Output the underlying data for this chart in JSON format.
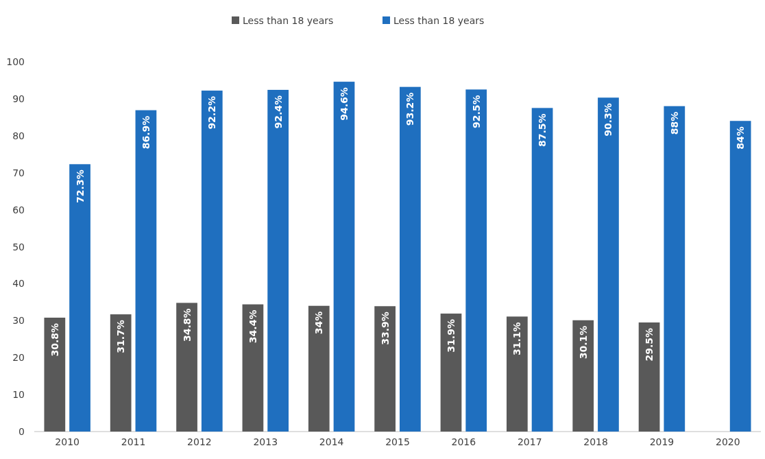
{
  "chart_data": {
    "type": "bar",
    "categories": [
      "2010",
      "2011",
      "2012",
      "2013",
      "2014",
      "2015",
      "2016",
      "2017",
      "2018",
      "2019",
      "2020"
    ],
    "series": [
      {
        "name": "Less than 18 years",
        "color": "#595959",
        "values": [
          30.8,
          31.7,
          34.8,
          34.4,
          34,
          33.9,
          31.9,
          31.1,
          30.1,
          29.5,
          null
        ],
        "value_labels": [
          "30.8%",
          "31.7%",
          "34.8%",
          "34.4%",
          "34%",
          "33.9%",
          "31.9%",
          "31.1%",
          "30.1%",
          "29.5%",
          null
        ]
      },
      {
        "name": "Less than 18 years",
        "color": "#1f6fbf",
        "values": [
          72.3,
          86.9,
          92.2,
          92.4,
          94.6,
          93.2,
          92.5,
          87.5,
          90.3,
          88,
          84
        ],
        "value_labels": [
          "72.3%",
          "86.9%",
          "92.2%",
          "92.4%",
          "94.6%",
          "93.2%",
          "92.5%",
          "87.5%",
          "90.3%",
          "88%",
          "84%"
        ]
      }
    ],
    "ylim": [
      0,
      100
    ],
    "yticks": [
      0,
      10,
      20,
      30,
      40,
      50,
      60,
      70,
      80,
      90,
      100
    ],
    "legend": "top"
  }
}
